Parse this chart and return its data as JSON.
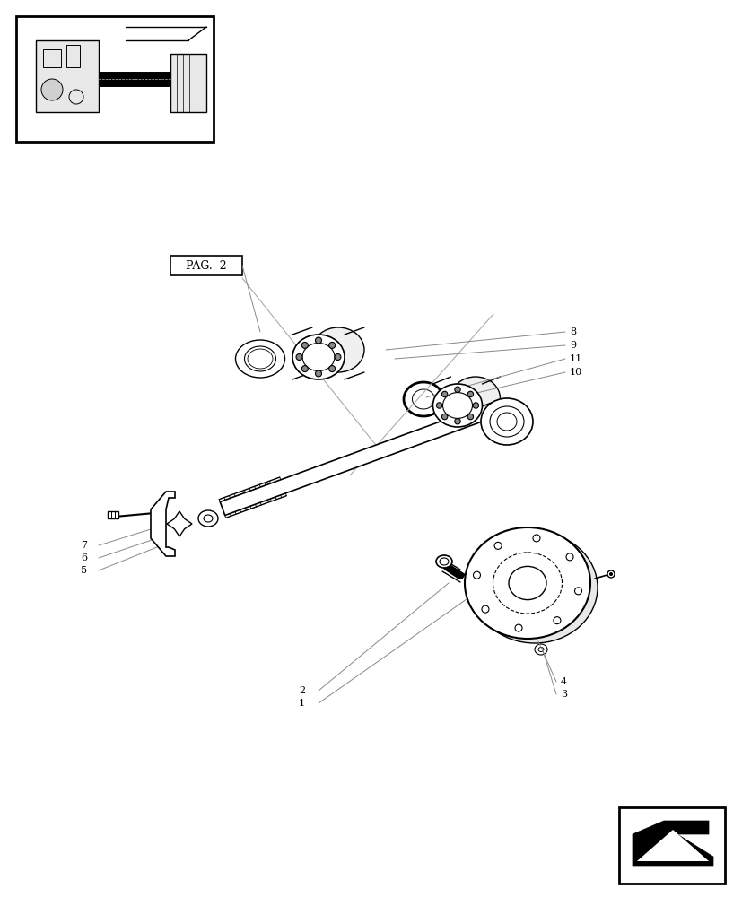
{
  "title": "",
  "bg_color": "#ffffff",
  "line_color": "#000000",
  "gray_color": "#888888",
  "light_gray": "#cccccc",
  "part_numbers": [
    "1",
    "2",
    "3",
    "4",
    "5",
    "6",
    "7",
    "8",
    "9",
    "10",
    "11"
  ],
  "pag_label": "PAG.  2",
  "fig_width": 8.28,
  "fig_height": 10.0,
  "dpi": 100
}
